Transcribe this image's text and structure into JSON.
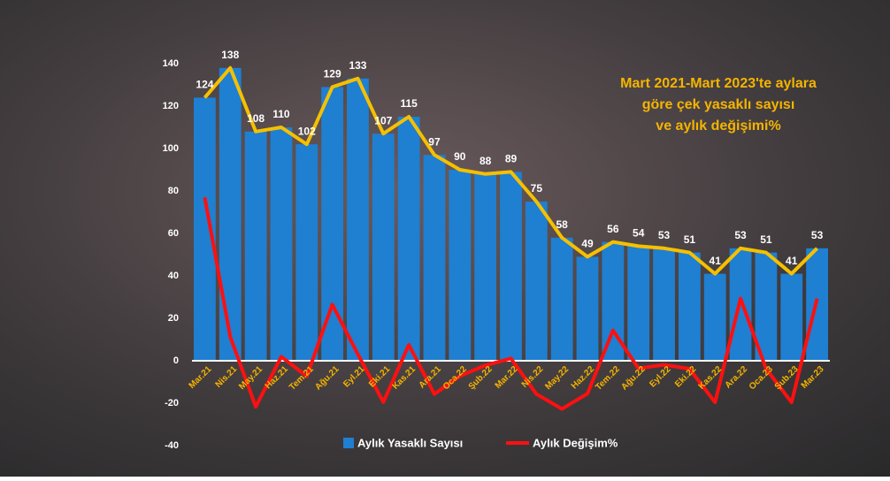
{
  "chart_data": {
    "type": "bar",
    "title": [
      "Mart 2021-Mart 2023'te aylara",
      "göre çek yasaklı sayısı",
      "ve aylık değişimi%"
    ],
    "categories": [
      "Mar.21",
      "Nis.21",
      "May.21",
      "Haz.21",
      "Tem.21",
      "Ağu.21",
      "Eyl.21",
      "Eki.21",
      "Kas.21",
      "Ara.21",
      "Oca.22",
      "Şub.22",
      "Mar.22",
      "Nis.22",
      "May.22",
      "Haz.22",
      "Tem.22",
      "Ağu.22",
      "Eyl.22",
      "Eki.22",
      "Kas.22",
      "Ara.22",
      "Oca.23",
      "Şub.23",
      "Mar.23"
    ],
    "series": [
      {
        "name": "Aylık Yasaklı Sayısı",
        "color": "#1f7fd1",
        "line_color": "#f5c000",
        "values": [
          124,
          138,
          108,
          110,
          102,
          129,
          133,
          107,
          115,
          97,
          90,
          88,
          89,
          75,
          58,
          49,
          56,
          54,
          53,
          51,
          41,
          53,
          51,
          41,
          53
        ]
      },
      {
        "name": "Aylık Değişim%",
        "color": "#ff1010",
        "values": [
          77,
          11.3,
          -21.7,
          1.9,
          -7.3,
          26.5,
          3.1,
          -19.5,
          7.5,
          -15.7,
          -7.2,
          -2.2,
          1.1,
          -15.7,
          -22.7,
          -15.5,
          14.3,
          -3.6,
          -1.9,
          -3.8,
          -19.6,
          29.3,
          -3.8,
          -19.6,
          29.3
        ]
      }
    ],
    "ylim": [
      -40,
      140
    ],
    "yticks": [
      -40,
      -20,
      0,
      20,
      40,
      60,
      80,
      100,
      120,
      140
    ],
    "grid": false
  }
}
